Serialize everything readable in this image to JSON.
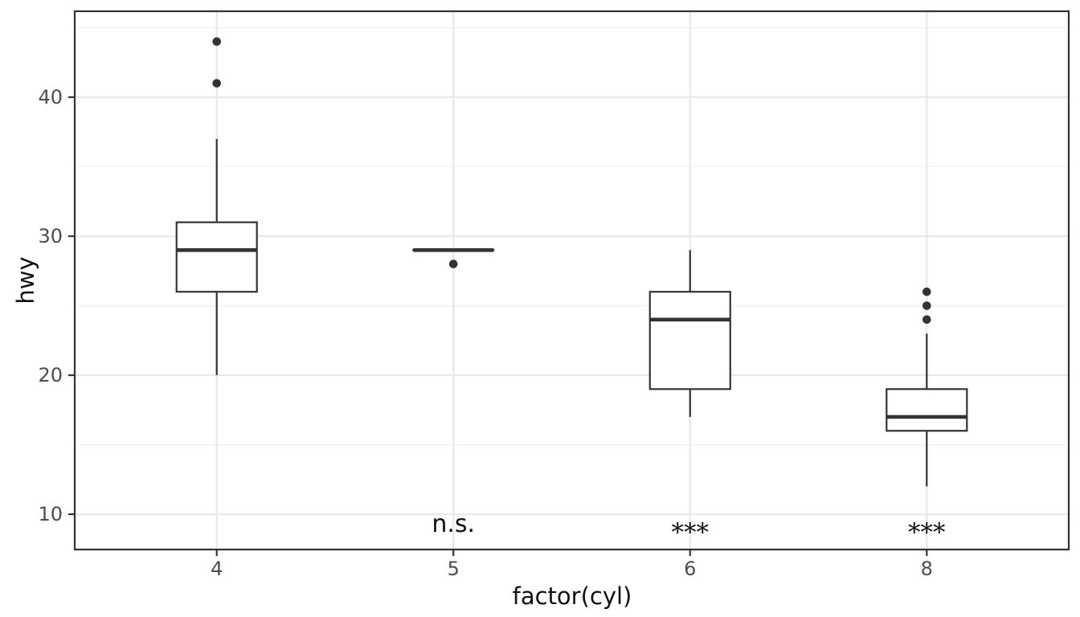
{
  "chart_data": {
    "type": "boxplot",
    "title": "",
    "xlabel": "factor(cyl)",
    "ylabel": "hwy",
    "categories": [
      "4",
      "5",
      "6",
      "8"
    ],
    "y_ticks": [
      10,
      20,
      30,
      40
    ],
    "y_minor_ticks": [
      15,
      25,
      35,
      45
    ],
    "ylim": [
      7.46,
      46.18
    ],
    "grid": "on",
    "legend": "none",
    "boxes": [
      {
        "category": "4",
        "whisker_low": 20,
        "q1": 26,
        "median": 29,
        "q3": 31,
        "whisker_high": 37,
        "outliers": [
          41,
          44
        ]
      },
      {
        "category": "5",
        "whisker_low": 29,
        "q1": 29,
        "median": 29,
        "q3": 29,
        "whisker_high": 29,
        "outliers": [
          28
        ]
      },
      {
        "category": "6",
        "whisker_low": 17,
        "q1": 19,
        "median": 24,
        "q3": 26,
        "whisker_high": 29,
        "outliers": []
      },
      {
        "category": "8",
        "whisker_low": 12,
        "q1": 16,
        "median": 17,
        "q3": 19,
        "whisker_high": 23,
        "outliers": [
          24,
          25,
          26
        ]
      }
    ],
    "annotations": [
      {
        "category": "5",
        "label": "n.s.",
        "y": 9.3,
        "style": "sans"
      },
      {
        "category": "6",
        "label": "***",
        "y": 9.3,
        "style": "serif"
      },
      {
        "category": "8",
        "label": "***",
        "y": 9.3,
        "style": "serif"
      }
    ],
    "colors": {
      "box_stroke": "#333333",
      "box_fill": "#ffffff",
      "median": "#333333",
      "outlier": "#333333",
      "grid_major": "#e8e8e8",
      "grid_minor": "#f1f1f1",
      "panel_border": "#333333",
      "axis_tick": "#333333",
      "axis_text": "#4d4d4d",
      "axis_title": "#111111",
      "background": "#ffffff"
    }
  }
}
